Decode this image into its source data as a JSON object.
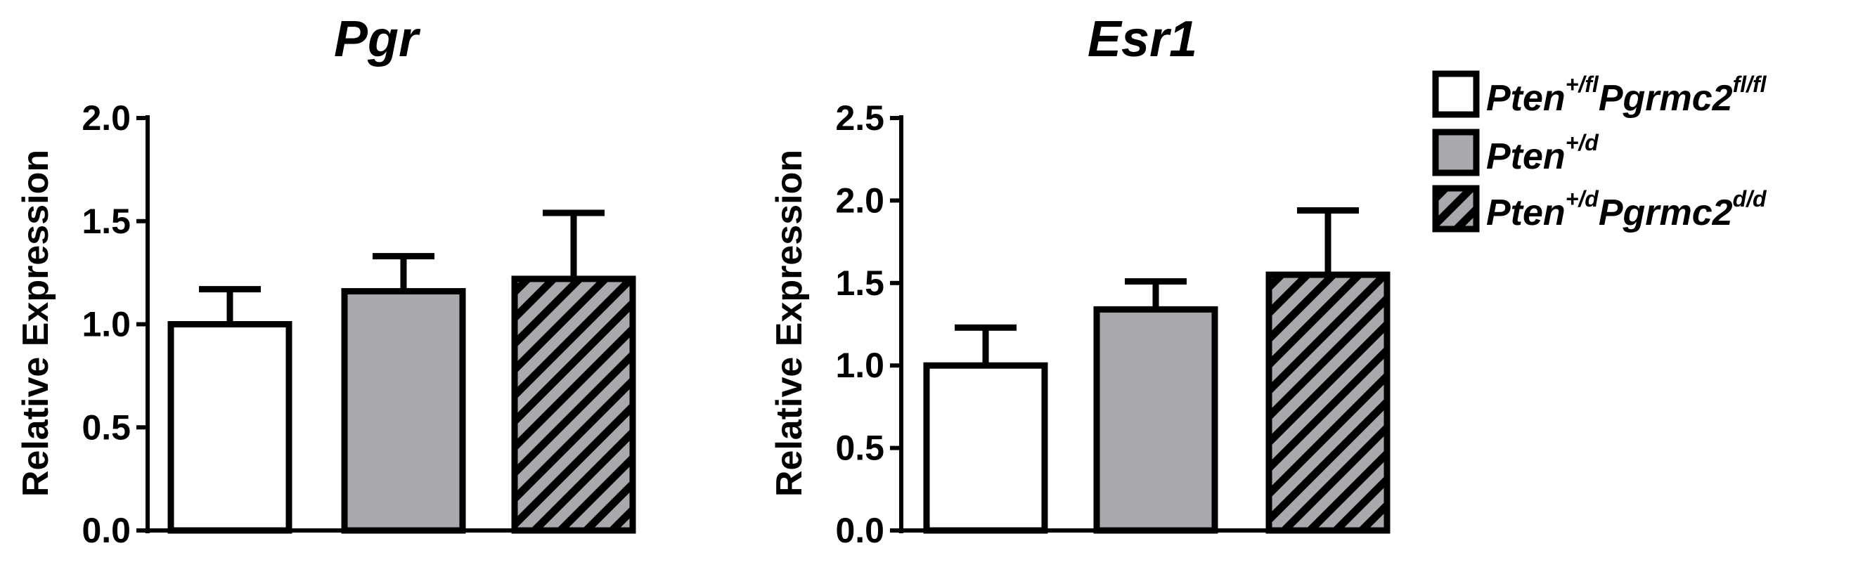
{
  "chart_data": [
    {
      "type": "bar",
      "title": "Pgr",
      "ylabel": "Relative Expression",
      "xlabel": "",
      "ylim": [
        0,
        2.0
      ],
      "yticks": [
        "0.0",
        "0.5",
        "1.0",
        "1.5",
        "2.0"
      ],
      "ytick_values": [
        0,
        0.5,
        1.0,
        1.5,
        2.0
      ],
      "categories": [
        "Pten+/flPgrmc2fl/fl",
        "Pten+/d",
        "Pten+/dPgrmc2d/d"
      ],
      "values": [
        1.0,
        1.16,
        1.22
      ],
      "errors": [
        0.17,
        0.17,
        0.32
      ],
      "grid": false
    },
    {
      "type": "bar",
      "title": "Esr1",
      "ylabel": "Relative Expression",
      "xlabel": "",
      "ylim": [
        0,
        2.5
      ],
      "yticks": [
        "0.0",
        "0.5",
        "1.0",
        "1.5",
        "2.0",
        "2.5"
      ],
      "ytick_values": [
        0,
        0.5,
        1.0,
        1.5,
        2.0,
        2.5
      ],
      "categories": [
        "Pten+/flPgrmc2fl/fl",
        "Pten+/d",
        "Pten+/dPgrmc2d/d"
      ],
      "values": [
        1.0,
        1.34,
        1.55
      ],
      "errors": [
        0.23,
        0.17,
        0.39
      ],
      "grid": false
    }
  ],
  "legend": {
    "placement": "top-right",
    "entries": [
      {
        "base1": "Pten",
        "sup1": "+/fl",
        "base2": "Pgrmc2",
        "sup2": "fl/fl",
        "fill": "white"
      },
      {
        "base1": "Pten",
        "sup1": "+/d",
        "base2": "",
        "sup2": "",
        "fill": "gray"
      },
      {
        "base1": "Pten",
        "sup1": "+/d",
        "base2": "Pgrmc2",
        "sup2": "d/d",
        "fill": "hatch"
      }
    ]
  },
  "colors": {
    "white": "#ffffff",
    "gray": "#a7a9ac",
    "outline": "#000000"
  }
}
